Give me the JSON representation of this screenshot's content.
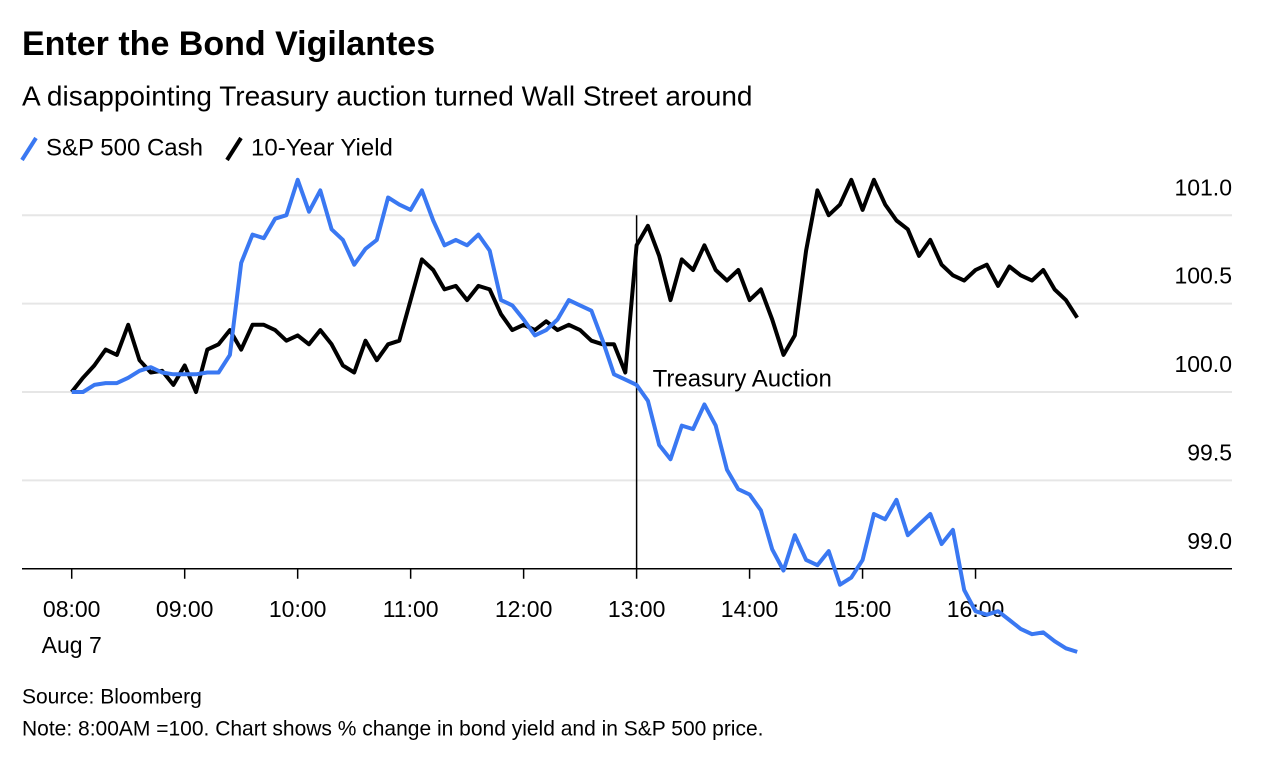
{
  "chart_data": {
    "type": "line",
    "title": "Enter the Bond Vigilantes",
    "subtitle": "A disappointing Treasury auction turned Wall Street around",
    "source": "Source: Bloomberg",
    "note": "Note: 8:00AM =100. Chart shows % change in bond yield and in S&P 500 price.",
    "x_sublabel": "Aug 7",
    "annotation": {
      "text": "Treasury Auction",
      "x": 13
    },
    "x": [
      8.0,
      8.1,
      8.2,
      8.3,
      8.4,
      8.5,
      8.6,
      8.7,
      8.8,
      8.9,
      9.0,
      9.1,
      9.2,
      9.3,
      9.4,
      9.5,
      9.6,
      9.7,
      9.8,
      9.9,
      10.0,
      10.1,
      10.2,
      10.3,
      10.4,
      10.5,
      10.6,
      10.7,
      10.8,
      10.9,
      11.0,
      11.1,
      11.2,
      11.3,
      11.4,
      11.5,
      11.6,
      11.7,
      11.8,
      11.9,
      12.0,
      12.1,
      12.2,
      12.3,
      12.4,
      12.5,
      12.6,
      12.7,
      12.8,
      12.9,
      13.0,
      13.1,
      13.2,
      13.3,
      13.4,
      13.5,
      13.6,
      13.7,
      13.8,
      13.9,
      14.0,
      14.1,
      14.2,
      14.3,
      14.4,
      14.5,
      14.6,
      14.7,
      14.8,
      14.9,
      15.0,
      15.1,
      15.2,
      15.3,
      15.4,
      15.5,
      15.6,
      15.7,
      15.8,
      15.9,
      16.0,
      16.1,
      16.2,
      16.3,
      16.4,
      16.5,
      16.6,
      16.7,
      16.8,
      16.9
    ],
    "series": [
      {
        "name": "S&P 500 Cash",
        "color": "#3a78f2",
        "values": [
          100.0,
          100.0,
          100.04,
          100.05,
          100.05,
          100.08,
          100.12,
          100.14,
          100.11,
          100.1,
          100.1,
          100.1,
          100.11,
          100.11,
          100.21,
          100.73,
          100.89,
          100.87,
          100.98,
          101.0,
          101.2,
          101.02,
          101.14,
          100.92,
          100.86,
          100.72,
          100.81,
          100.86,
          101.1,
          101.06,
          101.03,
          101.14,
          100.97,
          100.83,
          100.86,
          100.83,
          100.89,
          100.8,
          100.52,
          100.49,
          100.41,
          100.32,
          100.35,
          100.41,
          100.52,
          100.49,
          100.46,
          100.29,
          100.1,
          100.07,
          100.04,
          99.95,
          99.7,
          99.62,
          99.81,
          99.79,
          99.93,
          99.81,
          99.56,
          99.45,
          99.42,
          99.33,
          99.11,
          98.99,
          99.19,
          99.05,
          99.02,
          99.1,
          98.91,
          98.95,
          99.05,
          99.31,
          99.28,
          99.39,
          99.19,
          99.25,
          99.31,
          99.14,
          99.22,
          98.88,
          98.76,
          98.74,
          98.76,
          98.71,
          98.66,
          98.63,
          98.64,
          98.59,
          98.55,
          98.53
        ]
      },
      {
        "name": "10-Year Yield",
        "color": "#000000",
        "values": [
          100.0,
          100.08,
          100.15,
          100.24,
          100.21,
          100.38,
          100.18,
          100.11,
          100.12,
          100.04,
          100.15,
          100.0,
          100.24,
          100.27,
          100.35,
          100.24,
          100.38,
          100.38,
          100.35,
          100.29,
          100.32,
          100.27,
          100.35,
          100.27,
          100.15,
          100.11,
          100.29,
          100.18,
          100.27,
          100.29,
          100.52,
          100.75,
          100.69,
          100.58,
          100.6,
          100.52,
          100.6,
          100.58,
          100.44,
          100.35,
          100.38,
          100.35,
          100.4,
          100.35,
          100.38,
          100.35,
          100.29,
          100.27,
          100.27,
          100.11,
          100.83,
          100.94,
          100.77,
          100.52,
          100.75,
          100.69,
          100.83,
          100.69,
          100.63,
          100.69,
          100.52,
          100.58,
          100.41,
          100.21,
          100.32,
          100.8,
          101.14,
          101.0,
          101.06,
          101.2,
          101.03,
          101.2,
          101.06,
          100.97,
          100.92,
          100.77,
          100.86,
          100.72,
          100.66,
          100.63,
          100.69,
          100.72,
          100.6,
          100.71,
          100.66,
          100.63,
          100.69,
          100.58,
          100.52,
          100.42
        ]
      }
    ],
    "xlim": [
      7.56,
      18.27
    ],
    "xticks": [
      {
        "value": 8,
        "label": "08:00"
      },
      {
        "value": 9,
        "label": "09:00"
      },
      {
        "value": 10,
        "label": "10:00"
      },
      {
        "value": 11,
        "label": "11:00"
      },
      {
        "value": 12,
        "label": "12:00"
      },
      {
        "value": 13,
        "label": "13:00"
      },
      {
        "value": 14,
        "label": "14:00"
      },
      {
        "value": 15,
        "label": "15:00"
      },
      {
        "value": 16,
        "label": "16:00"
      }
    ],
    "ylim": [
      98.45,
      101.25
    ],
    "yticks": [
      {
        "value": 99,
        "label": "99.0"
      },
      99.5,
      {
        "value": 100,
        "label": "100.0"
      },
      100.5,
      {
        "value": 101,
        "label": "101.0"
      }
    ],
    "grid": true
  }
}
